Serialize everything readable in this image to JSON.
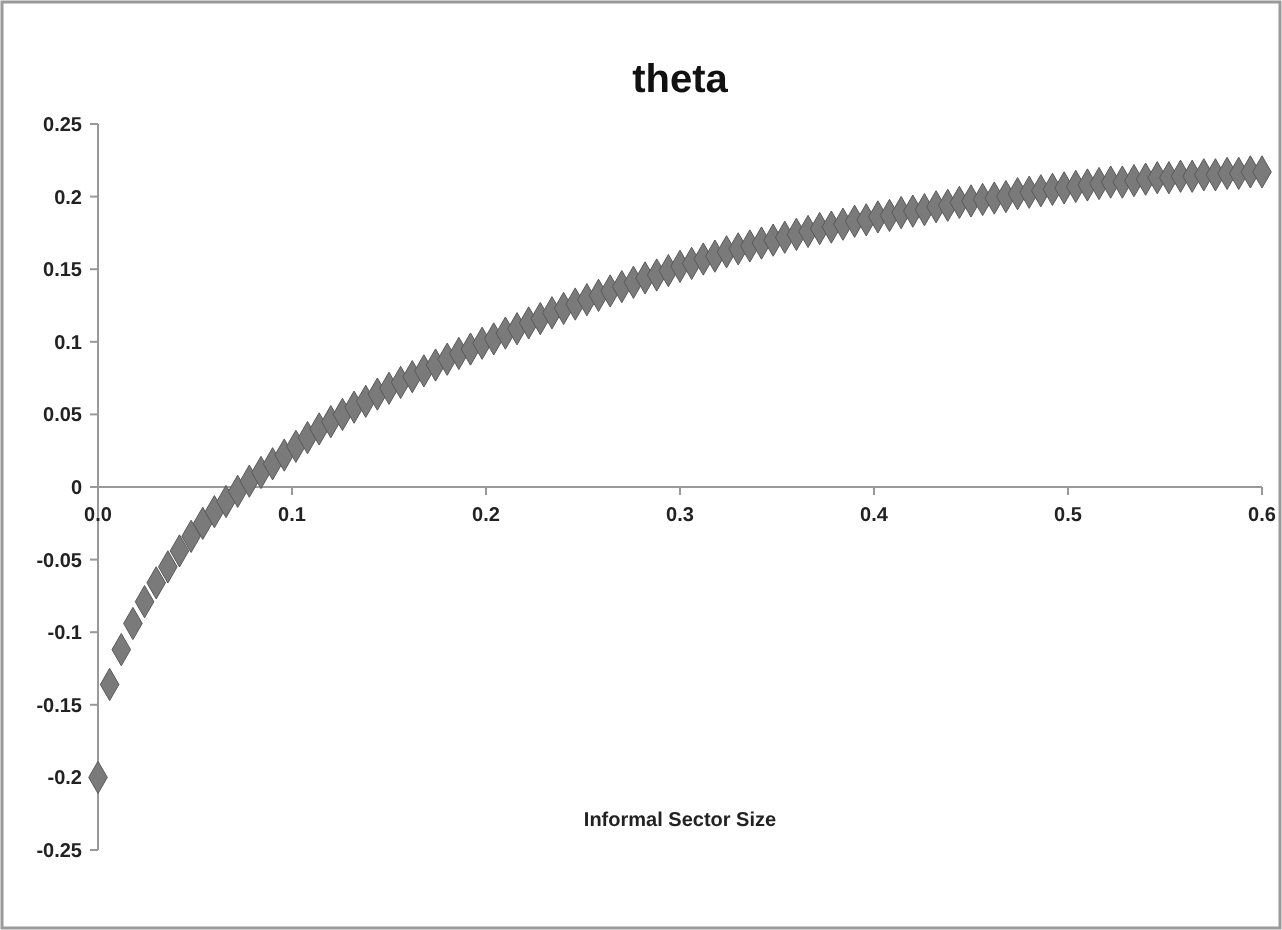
{
  "chart_data": {
    "type": "scatter",
    "title": "theta",
    "xlabel": "Informal Sector Size",
    "marker": "diamond",
    "grid": false,
    "xlim": [
      0,
      0.6
    ],
    "xticks": [
      {
        "value": 0,
        "label": "0.0"
      },
      0.1,
      0.2,
      0.3,
      0.4,
      0.5,
      0.6
    ],
    "ylim": [
      -0.25,
      0.25
    ],
    "yticks": [
      -0.25,
      -0.2,
      -0.15,
      -0.1,
      -0.05,
      0,
      0.05,
      0.1,
      0.15,
      0.2,
      0.25
    ],
    "series": [
      {
        "color": "#7a7a7a",
        "x": [
          0,
          0.006,
          0.012,
          0.018,
          0.024,
          0.03,
          0.036,
          0.042,
          0.048,
          0.054,
          0.06,
          0.066,
          0.072,
          0.078,
          0.084,
          0.09,
          0.096,
          0.102,
          0.108,
          0.114,
          0.12,
          0.126,
          0.132,
          0.138,
          0.144,
          0.15,
          0.156,
          0.162,
          0.168,
          0.174,
          0.18,
          0.186,
          0.192,
          0.198,
          0.204,
          0.21,
          0.216,
          0.222,
          0.228,
          0.234,
          0.24,
          0.246,
          0.252,
          0.258,
          0.264,
          0.27,
          0.276,
          0.282,
          0.288,
          0.294,
          0.3,
          0.306,
          0.312,
          0.318,
          0.324,
          0.33,
          0.336,
          0.342,
          0.348,
          0.354,
          0.36,
          0.366,
          0.372,
          0.378,
          0.384,
          0.39,
          0.396,
          0.402,
          0.408,
          0.414,
          0.42,
          0.426,
          0.432,
          0.438,
          0.444,
          0.45,
          0.456,
          0.462,
          0.468,
          0.474,
          0.48,
          0.486,
          0.492,
          0.498,
          0.504,
          0.51,
          0.516,
          0.522,
          0.528,
          0.534,
          0.54,
          0.546,
          0.552,
          0.558,
          0.564,
          0.57,
          0.576,
          0.582,
          0.588,
          0.594,
          0.6
        ],
        "values": [
          -0.2,
          -0.136,
          -0.112,
          -0.094,
          -0.079,
          -0.066,
          -0.055,
          -0.044,
          -0.034,
          -0.025,
          -0.017,
          -0.01,
          -0.003,
          0.004,
          0.01,
          0.016,
          0.022,
          0.028,
          0.034,
          0.04,
          0.045,
          0.05,
          0.055,
          0.059,
          0.064,
          0.068,
          0.072,
          0.076,
          0.08,
          0.084,
          0.088,
          0.092,
          0.095,
          0.099,
          0.102,
          0.106,
          0.109,
          0.113,
          0.116,
          0.12,
          0.123,
          0.126,
          0.129,
          0.132,
          0.135,
          0.138,
          0.141,
          0.144,
          0.146,
          0.149,
          0.152,
          0.154,
          0.157,
          0.159,
          0.162,
          0.164,
          0.166,
          0.168,
          0.17,
          0.172,
          0.174,
          0.176,
          0.178,
          0.179,
          0.181,
          0.183,
          0.184,
          0.186,
          0.187,
          0.189,
          0.19,
          0.191,
          0.193,
          0.194,
          0.196,
          0.197,
          0.198,
          0.199,
          0.2,
          0.202,
          0.203,
          0.204,
          0.205,
          0.206,
          0.207,
          0.208,
          0.209,
          0.21,
          0.21,
          0.211,
          0.212,
          0.213,
          0.213,
          0.214,
          0.214,
          0.215,
          0.215,
          0.216,
          0.216,
          0.217,
          0.217
        ]
      }
    ]
  }
}
